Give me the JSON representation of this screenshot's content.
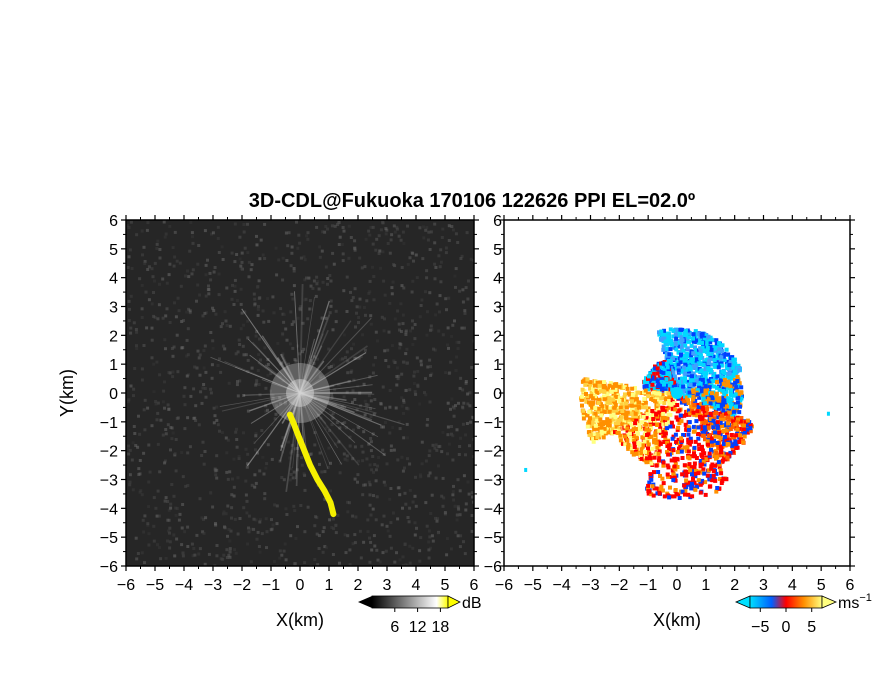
{
  "figure": {
    "title": "3D-CDL@Fukuoka 170106 122626 PPI EL=02.0º"
  },
  "chart_data": [
    {
      "type": "heatmap",
      "panel": "reflectivity",
      "xlabel": "X(km)",
      "ylabel": "Y(km)",
      "xlim": [
        -6,
        6
      ],
      "ylim": [
        -6,
        6
      ],
      "xticks": [
        "−6",
        "−5",
        "−4",
        "−3",
        "−2",
        "−1",
        "0",
        "1",
        "2",
        "3",
        "4",
        "5",
        "6"
      ],
      "yticks": [
        "−6",
        "−5",
        "−4",
        "−3",
        "−2",
        "−1",
        "0",
        "1",
        "2",
        "3",
        "4",
        "5",
        "6"
      ],
      "colorbar": {
        "unit": "dB",
        "ticks": [
          "6",
          "12",
          "18"
        ],
        "colors": [
          "#000000",
          "#ffffff",
          "#ffff00"
        ]
      },
      "background_color": "#262626",
      "beam_color": "#c8c8c8",
      "highlight_color": "#f5f000",
      "highlight_path": [
        {
          "x": -0.35,
          "y": -0.75
        },
        {
          "x": -0.2,
          "y": -1.1
        },
        {
          "x": -0.05,
          "y": -1.5
        },
        {
          "x": 0.15,
          "y": -2.0
        },
        {
          "x": 0.35,
          "y": -2.5
        },
        {
          "x": 0.6,
          "y": -3.0
        },
        {
          "x": 0.85,
          "y": -3.4
        },
        {
          "x": 1.05,
          "y": -3.8
        },
        {
          "x": 1.15,
          "y": -4.2
        }
      ]
    },
    {
      "type": "heatmap",
      "panel": "doppler_velocity",
      "xlabel": "X(km)",
      "ylabel": "",
      "xlim": [
        -6,
        6
      ],
      "ylim": [
        -6,
        6
      ],
      "xticks": [
        "−6",
        "−5",
        "−4",
        "−3",
        "−2",
        "−1",
        "0",
        "1",
        "2",
        "3",
        "4",
        "5",
        "6"
      ],
      "yticks": [
        "−6",
        "−5",
        "−4",
        "−3",
        "−2",
        "−1",
        "0",
        "1",
        "2",
        "3",
        "4",
        "5",
        "6"
      ],
      "colorbar": {
        "unit": "ms",
        "unit_exp": "−1",
        "ticks": [
          "−5",
          "0",
          "5"
        ],
        "range": [
          -7,
          7
        ],
        "colors": [
          "#00d8ff",
          "#0040ff",
          "#ff0000",
          "#ff9000",
          "#ffff80"
        ]
      },
      "background_color": "#ffffff"
    }
  ]
}
